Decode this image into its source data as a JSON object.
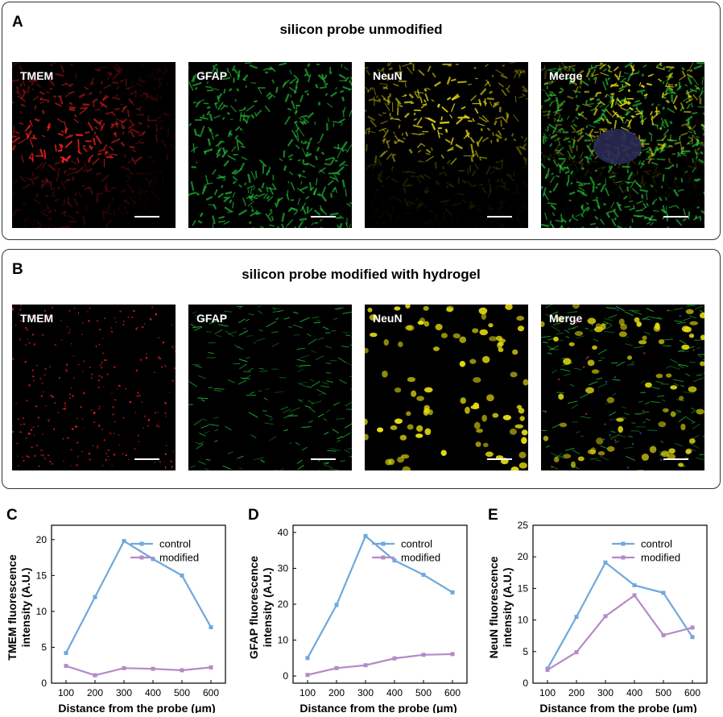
{
  "panels": {
    "A": {
      "letter": "A",
      "title": "silicon probe unmodified",
      "images": [
        {
          "label": "TMEM",
          "color": "#ff2020"
        },
        {
          "label": "GFAP",
          "color": "#22c83a"
        },
        {
          "label": "NeuN",
          "color": "#e6dd10"
        },
        {
          "label": "Merge",
          "color": "#c8d020"
        }
      ]
    },
    "B": {
      "letter": "B",
      "title": "silicon probe modified with hydrogel",
      "images": [
        {
          "label": "TMEM",
          "color": "#ff2020"
        },
        {
          "label": "GFAP",
          "color": "#22c83a"
        },
        {
          "label": "NeuN",
          "color": "#e6dd10"
        },
        {
          "label": "Merge",
          "color": "#c8d020"
        }
      ]
    }
  },
  "chart_data": [
    {
      "panel": "C",
      "type": "line",
      "x": [
        100,
        200,
        300,
        400,
        500,
        600
      ],
      "series": [
        {
          "name": "control",
          "color": "#6fa8dc",
          "values": [
            4.2,
            12.0,
            19.8,
            17.3,
            15.0,
            7.8
          ]
        },
        {
          "name": "modified",
          "color": "#b48ac7",
          "values": [
            2.4,
            1.1,
            2.1,
            2.0,
            1.8,
            2.2
          ]
        }
      ],
      "xlabel": "Distance from the probe (μm)",
      "ylabel_line1": "TMEM fluorescence",
      "ylabel_line2": "intensity (A.U.)",
      "ylim": [
        0,
        22
      ],
      "yticks": [
        0,
        5,
        10,
        15,
        20
      ],
      "legend": "top-right"
    },
    {
      "panel": "D",
      "type": "line",
      "x": [
        100,
        200,
        300,
        400,
        500,
        600
      ],
      "series": [
        {
          "name": "control",
          "color": "#6fa8dc",
          "values": [
            5.0,
            19.8,
            39.0,
            32.2,
            28.2,
            23.3
          ]
        },
        {
          "name": "modified",
          "color": "#b48ac7",
          "values": [
            0.3,
            2.2,
            3.0,
            4.9,
            5.9,
            6.1
          ]
        }
      ],
      "xlabel": "Distance from the probe (μm)",
      "ylabel_line1": "GFAP fluorescence",
      "ylabel_line2": "intensity (A.U.)",
      "ylim": [
        -2,
        42
      ],
      "yticks": [
        0,
        10,
        20,
        30,
        40
      ],
      "legend": "top-right"
    },
    {
      "panel": "E",
      "type": "line",
      "x": [
        100,
        200,
        300,
        400,
        500,
        600
      ],
      "series": [
        {
          "name": "control",
          "color": "#6fa8dc",
          "values": [
            2.3,
            10.5,
            19.1,
            15.5,
            14.3,
            7.3
          ]
        },
        {
          "name": "modified",
          "color": "#b48ac7",
          "values": [
            2.1,
            4.9,
            10.6,
            13.9,
            7.6,
            8.8
          ]
        }
      ],
      "xlabel": "Distance from the probe (μm)",
      "ylabel_line1": "NeuN fluorescence",
      "ylabel_line2": "intensity (A.U.)",
      "ylim": [
        0,
        25
      ],
      "yticks": [
        0,
        5,
        10,
        15,
        20,
        25
      ],
      "legend": "top-right"
    }
  ],
  "chart_letters": [
    "C",
    "D",
    "E"
  ]
}
